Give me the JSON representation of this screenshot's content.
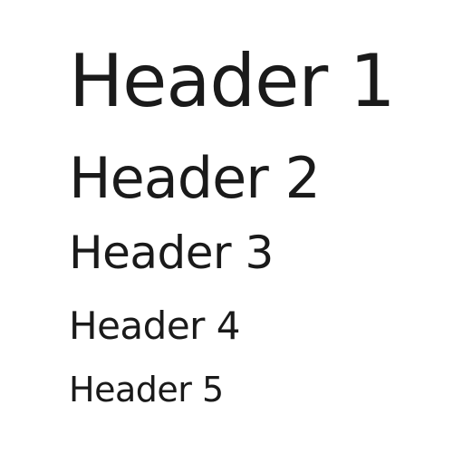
{
  "headings": [
    {
      "level": 1,
      "text": "Header 1"
    },
    {
      "level": 2,
      "text": "Header 2"
    },
    {
      "level": 3,
      "text": "Header 3"
    },
    {
      "level": 4,
      "text": "Header 4"
    },
    {
      "level": 5,
      "text": "Header 5"
    }
  ],
  "colors": {
    "text": "#1a1a1a",
    "background": "#ffffff"
  }
}
